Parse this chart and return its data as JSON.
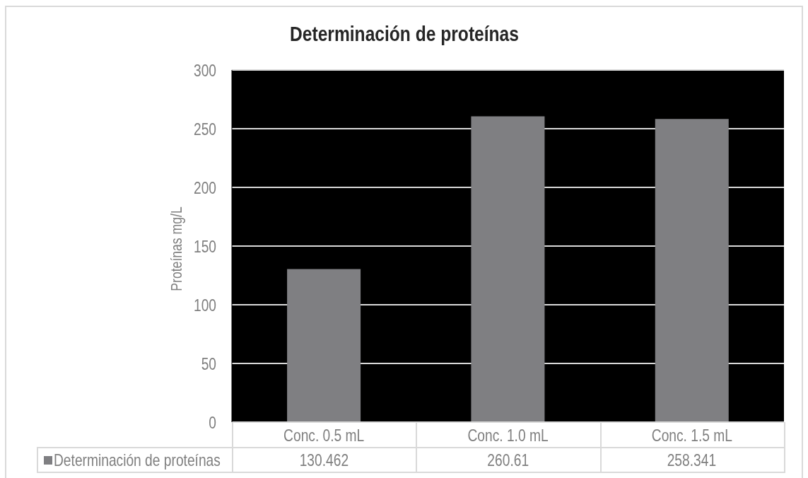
{
  "chart_data": {
    "type": "bar",
    "title": "Determinación de proteínas",
    "ylabel": "Proteínas mg/L",
    "categories": [
      "Conc. 0.5 mL",
      "Conc. 1.0 mL",
      "Conc. 1.5 mL"
    ],
    "series": [
      {
        "name": "Determinación de proteínas",
        "color": "#7f7f82",
        "values": [
          130.462,
          260.61,
          258.341
        ]
      }
    ],
    "ylim": [
      0,
      300
    ],
    "yticks": [
      0,
      50,
      100,
      150,
      200,
      250,
      300
    ],
    "grid": "y",
    "legend": "bottom",
    "data_labels": true
  }
}
